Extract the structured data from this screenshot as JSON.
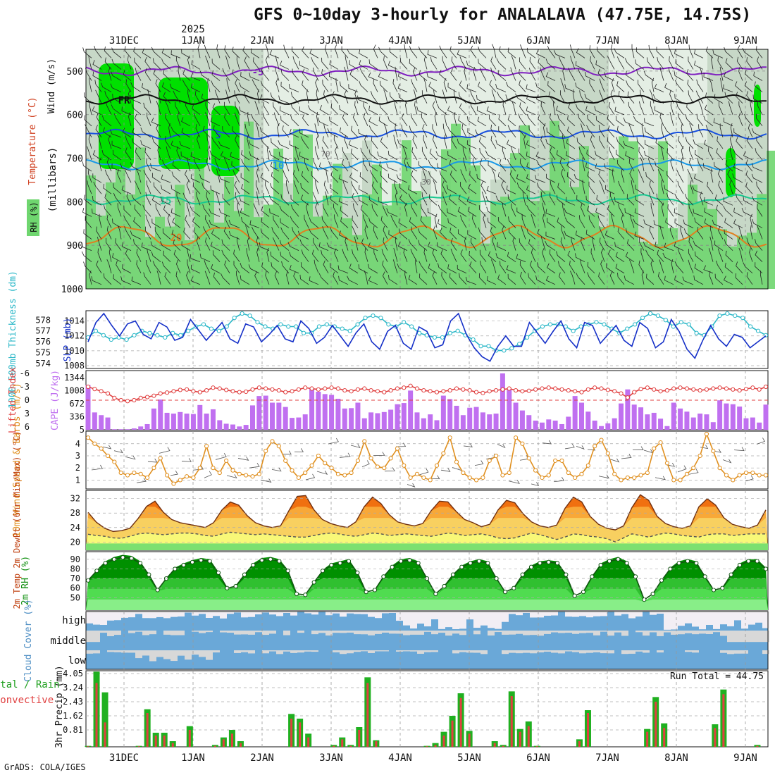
{
  "title": "GFS 0~10day 3-hourly for ANALALAVA (47.75E, 14.75S)",
  "credit": "GrADS: COLA/IGES",
  "colors": {
    "rh_dark": "#00e000",
    "rh_mid": "#6fd66f",
    "rh_light": "#c7d8c7",
    "rh_pale": "#e9f2e9",
    "wind_barb": "#222222",
    "slp": "#1530c8",
    "thickness": "#2cb8c8",
    "cape": "#c070f0",
    "lifted_index": "#e04040",
    "wind10m": "#e09020",
    "temp_fill_hot": "#f07010",
    "temp_fill_warm": "#f8a838",
    "temp_fill_mild": "#f8d060",
    "dewpoint_fill": "#f8f878",
    "rh2m_dark": "#009000",
    "rh2m_light": "#60e060",
    "cloud_blue": "#6aa8d8",
    "cloud_grey": "#d8d8d8",
    "precip_total": "#20b020",
    "precip_conv": "#e04040"
  },
  "chart_data": [
    {
      "panel": "upper_air",
      "type": "heatmap",
      "legend_labels": [
        "Wind (m/s)",
        "Temperature (°C)",
        "RH (%)"
      ],
      "ylabel": "(millibars)",
      "yticks": [
        500,
        600,
        700,
        800,
        900,
        1000
      ],
      "ylim": [
        1000,
        450
      ],
      "isotherm_labels": [
        "-5",
        "FR",
        "5",
        "10",
        "15",
        "20"
      ],
      "rh_labels": [
        "70",
        "30"
      ],
      "x_dates": [
        "31DEC",
        "1JAN",
        "2JAN",
        "3JAN",
        "4JAN",
        "5JAN",
        "6JAN",
        "7JAN",
        "8JAN",
        "9JAN"
      ],
      "year_label": "2025"
    },
    {
      "panel": "slp_thickness",
      "type": "line",
      "ylabel_left": "1000-500mb Thickness (dm)",
      "ylabel_right": "SLP (mb)",
      "thickness_ticks": [
        574,
        575,
        576,
        577,
        578
      ],
      "slp_ticks": [
        1008,
        1010,
        1012,
        1014
      ],
      "series": [
        {
          "name": "SLP (mb)",
          "values": [
            1011.2,
            1013.8,
            1015,
            1013.4,
            1012,
            1013.6,
            1014,
            1012.2,
            1011.6,
            1013.8,
            1013.2,
            1011.4,
            1011.8,
            1014.2,
            1012.8,
            1011.4,
            1012.6,
            1013.8,
            1011.6,
            1011,
            1013.6,
            1013.2,
            1011.2,
            1012.2,
            1013.4,
            1011.6,
            1011.2,
            1014,
            1013,
            1011,
            1011.8,
            1013.4,
            1012,
            1010.6,
            1012.4,
            1013.6,
            1011.2,
            1010.2,
            1012.6,
            1013.4,
            1011,
            1010.2,
            1013.2,
            1012.6,
            1010.4,
            1010.8,
            1014,
            1015,
            1012.2,
            1010.4,
            1009.2,
            1008.6,
            1010.6,
            1012,
            1010.6,
            1010.6,
            1013.8,
            1012.4,
            1011,
            1012.6,
            1014,
            1011.6,
            1010.4,
            1013.8,
            1013.4,
            1011,
            1012.2,
            1013.4,
            1011.4,
            1010.6,
            1013.8,
            1013,
            1010.4,
            1011.2,
            1014.2,
            1012.6,
            1010.2,
            1009,
            1011.4,
            1013.4,
            1011.6,
            1010.6,
            1012.2,
            1011.8,
            1010.4,
            1011.2,
            1012
          ]
        },
        {
          "name": "1000-500mb Thickness (dm)",
          "values": [
            576.4,
            577,
            576.6,
            576.2,
            576.4,
            576.2,
            576.6,
            577,
            576.8,
            576.6,
            576.4,
            576.8,
            576.6,
            577,
            577.4,
            577.6,
            577.2,
            577,
            577.4,
            578.2,
            578.6,
            578.4,
            577.8,
            577.4,
            577.2,
            577.6,
            577.4,
            577.4,
            576.8,
            576.8,
            577.4,
            577.6,
            577.4,
            577.2,
            577,
            577.6,
            578.2,
            578.4,
            578.2,
            577.6,
            577.4,
            577.8,
            577.4,
            576.8,
            576.6,
            576.4,
            576.4,
            576.8,
            577,
            576.6,
            576.2,
            575.6,
            575.6,
            575.2,
            575.2,
            575.4,
            575.8,
            576.4,
            577,
            577.4,
            577.6,
            577.6,
            577.4,
            577,
            577.4,
            577.6,
            577.8,
            577.6,
            577.2,
            576.8,
            577.2,
            577.6,
            578.2,
            578.6,
            578.4,
            578,
            577.4,
            577.8,
            577.6,
            576.8,
            576.6,
            577.4,
            578.4,
            578.6,
            578.4,
            578.2,
            577.4,
            577,
            576.6
          ]
        }
      ]
    },
    {
      "panel": "cape_li",
      "type": "bar",
      "ylabel_left": "Lifted Index",
      "ylabel_right": "CAPE (J/kg)",
      "li_ticks": [
        -6,
        -3,
        0,
        3,
        6
      ],
      "cape_ticks": [
        5,
        336,
        672,
        1008,
        1344
      ],
      "series": [
        {
          "name": "CAPE (J/kg)",
          "values": [
            1150,
            450,
            380,
            320,
            20,
            20,
            20,
            40,
            90,
            150,
            550,
            780,
            440,
            420,
            460,
            420,
            410,
            640,
            420,
            530,
            250,
            160,
            140,
            90,
            130,
            630,
            870,
            880,
            700,
            700,
            590,
            310,
            320,
            400,
            1050,
            980,
            920,
            900,
            800,
            550,
            560,
            700,
            300,
            450,
            430,
            460,
            520,
            660,
            690,
            1010,
            450,
            300,
            400,
            250,
            880,
            790,
            620,
            380,
            570,
            590,
            450,
            400,
            420,
            1450,
            1030,
            700,
            500,
            380,
            240,
            190,
            270,
            240,
            150,
            340,
            870,
            700,
            470,
            240,
            100,
            170,
            300,
            680,
            1040,
            650,
            580,
            400,
            440,
            290,
            100,
            700,
            550,
            470,
            320,
            420,
            400,
            200,
            760,
            680,
            660,
            600,
            300,
            320,
            190,
            650
          ]
        },
        {
          "name": "Lifted Index",
          "values": [
            -3,
            -2.5,
            -2,
            -1.5,
            -0.5,
            0,
            0.2,
            0,
            -0.5,
            -0.7,
            -1,
            -1.5,
            -1.7,
            -2,
            -2.3,
            -2.4,
            -2,
            -1.8,
            -2.2,
            -2.8,
            -2.6,
            -2.3,
            -2,
            -1.8,
            -1.9,
            -2.4,
            -2.8,
            -2.6,
            -2.4,
            -2.2,
            -1.8,
            -2,
            -2.4,
            -2.8,
            -2.6,
            -2.4,
            -2.6,
            -2.8,
            -2.6,
            -2.2,
            -2,
            -2.4,
            -2.6,
            -2.2,
            -2,
            -1.8,
            -2.2,
            -2.6,
            -2.8,
            -3.2,
            -2.6,
            -2.2,
            -2,
            -1.8,
            -2,
            -2.2,
            -2.6,
            -2.4,
            -2.2,
            -1.8,
            -1.6,
            -2,
            -2.2,
            -2.4,
            -2.6,
            -2.2,
            -2,
            -2.1,
            -2.4,
            -2.6,
            -2.8,
            -2.6,
            -2.4,
            -2.2,
            -2,
            -1.8,
            -2.4,
            -2.8,
            -2.6,
            -2.3,
            -2,
            -1.5,
            -0.6,
            -1.8,
            -2.5,
            -2.8,
            -2.4,
            -2,
            -2.2,
            -2.6,
            -2.8,
            -2.6,
            -2.4,
            -2.2,
            -2.4,
            -2.6,
            -2.8,
            -2.6,
            -2.4,
            -2.2,
            -2.5,
            -2.8,
            -2.4,
            -3
          ]
        }
      ]
    },
    {
      "panel": "wind10m",
      "type": "line",
      "ylabel": "10m Wind Speed & Barbs (m/s)",
      "yticks": [
        1,
        2,
        3,
        4
      ],
      "ylim": [
        0.5,
        4.8
      ],
      "series": [
        {
          "name": "10m Wind Speed (m/s)",
          "values": [
            4.5,
            4.0,
            3.6,
            3.0,
            2.5,
            1.6,
            1.4,
            1.6,
            1.5,
            1.2,
            2.0,
            2.8,
            1.4,
            0.7,
            1.0,
            1.3,
            1.2,
            2.0,
            3.8,
            2.0,
            1.6,
            2.6,
            1.8,
            1.5,
            1.4,
            1.3,
            1.5,
            3.4,
            4.2,
            3.8,
            2.6,
            1.8,
            1.2,
            1.6,
            2.2,
            3.0,
            2.4,
            2.0,
            1.5,
            1.4,
            1.6,
            2.6,
            4.2,
            2.8,
            2.1,
            2.0,
            2.8,
            3.6,
            2.2,
            1.2,
            1.5,
            1.2,
            1.0,
            2.2,
            3.2,
            4.5,
            2.5,
            1.6,
            1.2,
            1.0,
            1.2,
            2.6,
            3.0,
            1.4,
            1.6,
            4.5,
            4.0,
            2.8,
            1.8,
            1.2,
            1.4,
            2.6,
            2.6,
            1.6,
            1.2,
            1.5,
            2.2,
            3.8,
            4.3,
            3.2,
            1.5,
            1.0,
            1.2,
            1.2,
            1.4,
            1.6,
            3.6,
            4.1,
            2.4,
            1.0,
            1.0,
            1.5,
            2.0,
            3.0,
            4.8,
            3.4,
            2.0,
            1.4,
            1.0,
            1.4,
            1.6,
            1.6,
            1.4,
            1.4
          ]
        }
      ]
    },
    {
      "panel": "temp2m",
      "type": "area",
      "ylabel": "2m Temp 2m DewPt (6hr Min/Max) (°C)",
      "yticks": [
        20,
        24,
        28,
        32
      ],
      "ylim": [
        18.5,
        33.5
      ],
      "series": [
        {
          "name": "2m Temp (°C)",
          "values": [
            28,
            25.5,
            24,
            23.2,
            23.4,
            24,
            26.5,
            29.5,
            30.8,
            28,
            26.2,
            25.4,
            25,
            24.6,
            24.2,
            25.4,
            28.6,
            30.6,
            29.8,
            27.2,
            25.4,
            24.6,
            24.2,
            24.6,
            28.4,
            32,
            32.2,
            28.6,
            26.2,
            25.2,
            24.6,
            24.2,
            25.6,
            29.4,
            31.8,
            30.2,
            27.4,
            25.6,
            25,
            24.6,
            25.2,
            28.4,
            30.8,
            30.6,
            28.2,
            26.2,
            25.4,
            24.4,
            25,
            28.6,
            31,
            30.4,
            27.6,
            25.6,
            24.6,
            24.2,
            24.8,
            29,
            31.8,
            30.6,
            27,
            25,
            24,
            23.6,
            24.6,
            29.2,
            32.4,
            31,
            27,
            25.2,
            24.4,
            24,
            24.6,
            29.4,
            31.4,
            29.8,
            26.6,
            25,
            24.4,
            24,
            24.8,
            28.6
          ]
        },
        {
          "name": "2m DewPt (°C)",
          "values": [
            22.5,
            22.2,
            22,
            21.6,
            21.5,
            22,
            22.6,
            22.8,
            22.6,
            22.4,
            22.6,
            22.8,
            22.8,
            22.6,
            22.2,
            22,
            22.6,
            23,
            22.8,
            22.6,
            22.4,
            22.6,
            22.4,
            22.2,
            22,
            21.8,
            21.8,
            22.2,
            22.6,
            22.8,
            22.6,
            22.2,
            22,
            22.4,
            22.8,
            22.6,
            22.2,
            22.4,
            22.6,
            22.4,
            22.2,
            22,
            22.4,
            22.8,
            22.6,
            22.2,
            22.4,
            22.6,
            22.2,
            21.6,
            21.4,
            21.6,
            22.2,
            22.8,
            22.4,
            21.8,
            21.2,
            21.8,
            22.6,
            22.4,
            22,
            21.8,
            21.4,
            20.6,
            21.6,
            22.6,
            22.2,
            21.8,
            22.4,
            22.8,
            22.6,
            22.2,
            22,
            21.8,
            22.4,
            22.6,
            22.6,
            22.2,
            22.4,
            22.6,
            22.6,
            22.6
          ]
        }
      ]
    },
    {
      "panel": "rh2m",
      "type": "area",
      "ylabel": "2m RH (%)",
      "yticks": [
        50,
        60,
        70,
        80,
        90
      ],
      "ylim": [
        40,
        95
      ],
      "series": [
        {
          "name": "2m RH (%)",
          "values": [
            68,
            78,
            86,
            90,
            92,
            91,
            86,
            74,
            58,
            70,
            80,
            84,
            87,
            89,
            88,
            76,
            60,
            62,
            74,
            84,
            89,
            90,
            88,
            78,
            54,
            53,
            66,
            78,
            84,
            86,
            88,
            76,
            56,
            58,
            72,
            82,
            88,
            89,
            86,
            70,
            54,
            62,
            74,
            82,
            86,
            88,
            86,
            70,
            56,
            60,
            74,
            82,
            86,
            87,
            86,
            74,
            52,
            56,
            72,
            84,
            88,
            90,
            86,
            72,
            48,
            54,
            68,
            80,
            86,
            88,
            86,
            72,
            58,
            60,
            74,
            84,
            88,
            88,
            80
          ]
        }
      ]
    },
    {
      "panel": "cloud_cover",
      "type": "area",
      "ylabel": "Cloud Cover (%)",
      "row_labels": [
        "high",
        "middle",
        "low"
      ]
    },
    {
      "panel": "precip",
      "type": "bar",
      "ylabel": "3hr Precip (mm)",
      "left_label": "Total / Rain Convective",
      "yticks": [
        0.81,
        1.62,
        2.43,
        3.24,
        4.05
      ],
      "ylim": [
        0,
        4.05
      ],
      "run_total_label": "Run Total = 44.75",
      "series": [
        {
          "name": "Total (mm)",
          "values": [
            0.05,
            4,
            2.9,
            0,
            0,
            0,
            0.05,
            2,
            0.75,
            0.75,
            0.3,
            0,
            1.1,
            0,
            0,
            0.1,
            0.5,
            0.9,
            0.3,
            0,
            0,
            0,
            0,
            0,
            1.75,
            1.5,
            0.7,
            0,
            0,
            0.1,
            0.5,
            0.1,
            1.05,
            3.7,
            0.35,
            0,
            0,
            0,
            0,
            0,
            0.05,
            0.2,
            0.8,
            1.65,
            2.85,
            0.85,
            0,
            0,
            0.3,
            0.1,
            2.95,
            0.95,
            1.35,
            0.05,
            0,
            0,
            0,
            0,
            0.4,
            1.95,
            0,
            0,
            0,
            0,
            0,
            0,
            0.95,
            2.65,
            1.25,
            0,
            0,
            0,
            0,
            0,
            1.2,
            3.05,
            0,
            0,
            0,
            0.1,
            0
          ]
        },
        {
          "name": "Convective (mm)",
          "values": [
            0.03,
            3.4,
            1.3,
            0,
            0,
            0,
            0.03,
            1.8,
            0.6,
            0.6,
            0.2,
            0,
            0.9,
            0,
            0,
            0.05,
            0.4,
            0.7,
            0.2,
            0,
            0,
            0,
            0,
            0,
            1.5,
            1.3,
            0.5,
            0,
            0,
            0.05,
            0.4,
            0.05,
            0.9,
            3.4,
            0.3,
            0,
            0,
            0,
            0,
            0,
            0.03,
            0.1,
            0.6,
            1.4,
            2.6,
            0.7,
            0,
            0,
            0.2,
            0.05,
            2.7,
            0.8,
            1.1,
            0.03,
            0,
            0,
            0,
            0,
            0.3,
            1.8,
            0,
            0,
            0,
            0,
            0,
            0,
            0.8,
            2.4,
            1,
            0,
            0,
            0,
            0,
            0,
            1,
            2.8,
            0,
            0,
            0,
            0.05,
            0
          ]
        }
      ]
    }
  ]
}
